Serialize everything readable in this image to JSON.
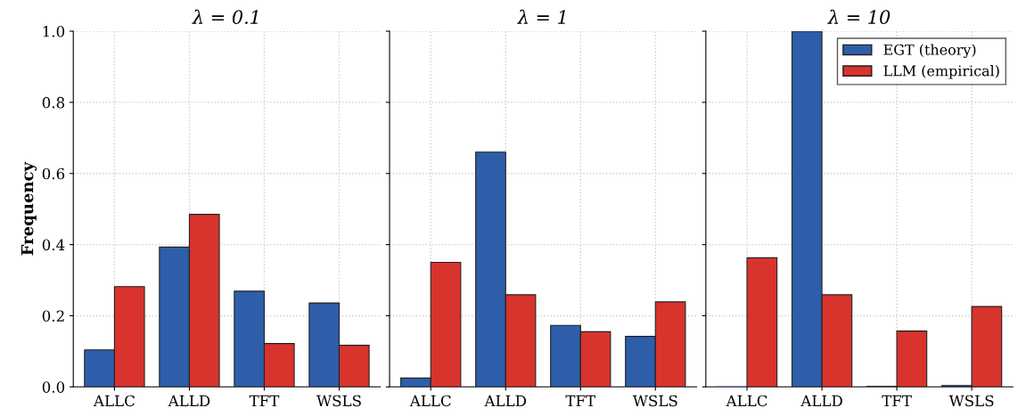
{
  "chart_data": [
    {
      "type": "bar",
      "title": "λ = 0.1",
      "ylabel": "Frequency",
      "categories": [
        "ALLC",
        "ALLD",
        "TFT",
        "WSLS"
      ],
      "series": [
        {
          "color": "#2e5eaa",
          "values": [
            0.104,
            0.393,
            0.269,
            0.236
          ]
        },
        {
          "color": "#d8332d",
          "values": [
            0.282,
            0.485,
            0.122,
            0.117
          ]
        }
      ],
      "ylim": [
        0,
        1
      ],
      "yticks": [
        {
          "value": 0,
          "label": "0.0"
        },
        0.2,
        0.4,
        0.6,
        0.8,
        {
          "value": 1,
          "label": "1.0"
        }
      ],
      "grid": true,
      "legend": false
    },
    {
      "type": "bar",
      "title": "λ = 1",
      "categories": [
        "ALLC",
        "ALLD",
        "TFT",
        "WSLS"
      ],
      "series": [
        {
          "color": "#2e5eaa",
          "values": [
            0.025,
            0.66,
            0.173,
            0.142
          ]
        },
        {
          "color": "#d8332d",
          "values": [
            0.35,
            0.259,
            0.155,
            0.239
          ]
        }
      ],
      "ylim": [
        0,
        1
      ],
      "yticks": [
        {
          "value": 0,
          "label": null
        },
        {
          "value": 0.2,
          "label": null
        },
        {
          "value": 0.4,
          "label": null
        },
        {
          "value": 0.6,
          "label": null
        },
        {
          "value": 0.8,
          "label": null
        },
        {
          "value": 1,
          "label": null
        }
      ],
      "grid": true,
      "legend": false,
      "tick_labels": "x"
    },
    {
      "type": "bar",
      "title": "λ = 10",
      "categories": [
        "ALLC",
        "ALLD",
        "TFT",
        "WSLS"
      ],
      "series": [
        {
          "name": "EGT (theory)",
          "color": "#2e5eaa",
          "values": [
            0.0,
            1.0,
            0.001,
            0.004
          ]
        },
        {
          "name": "LLM (empirical)",
          "color": "#d8332d",
          "values": [
            0.363,
            0.259,
            0.157,
            0.226
          ]
        }
      ],
      "ylim": [
        0,
        1
      ],
      "yticks": [
        {
          "value": 0,
          "label": null
        },
        {
          "value": 0.2,
          "label": null
        },
        {
          "value": 0.4,
          "label": null
        },
        {
          "value": 0.6,
          "label": null
        },
        {
          "value": 0.8,
          "label": null
        },
        {
          "value": 1,
          "label": null
        }
      ],
      "grid": true,
      "legend": "top right",
      "tick_labels": "x"
    }
  ]
}
